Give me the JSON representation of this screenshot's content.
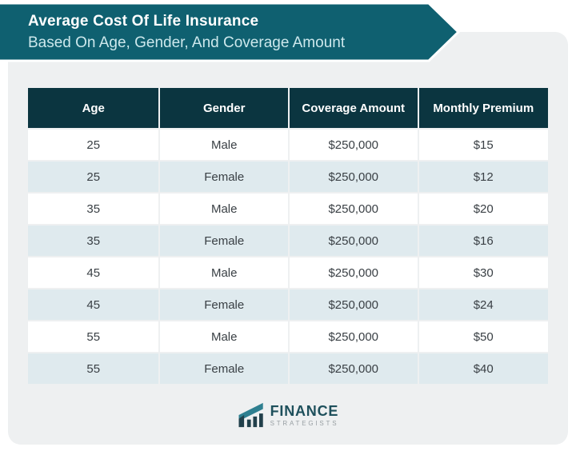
{
  "banner": {
    "title": "Average Cost Of Life Insurance",
    "subtitle": "Based On Age, Gender, And Coverage Amount"
  },
  "table": {
    "columns": [
      "Age",
      "Gender",
      "Coverage Amount",
      "Monthly Premium"
    ],
    "rows": [
      [
        "25",
        "Male",
        "$250,000",
        "$15"
      ],
      [
        "25",
        "Female",
        "$250,000",
        "$12"
      ],
      [
        "35",
        "Male",
        "$250,000",
        "$20"
      ],
      [
        "35",
        "Female",
        "$250,000",
        "$16"
      ],
      [
        "45",
        "Male",
        "$250,000",
        "$30"
      ],
      [
        "45",
        "Female",
        "$250,000",
        "$24"
      ],
      [
        "55",
        "Male",
        "$250,000",
        "$50"
      ],
      [
        "55",
        "Female",
        "$250,000",
        "$40"
      ]
    ]
  },
  "logo": {
    "name": "FINANCE",
    "tagline": "STRATEGISTS"
  },
  "colors": {
    "banner_teal": "#0f6070",
    "header_bg": "#0b3540",
    "row_white": "#ffffff",
    "row_alt": "#dfeaee",
    "card_bg": "#eef0f1",
    "subtitle_text": "#cde8ec",
    "body_text": "#3a4045"
  },
  "chart_data": {
    "type": "table",
    "title": "Average Cost Of Life Insurance Based On Age, Gender, And Coverage Amount",
    "columns": [
      "Age",
      "Gender",
      "Coverage Amount",
      "Monthly Premium"
    ],
    "rows": [
      {
        "age": 25,
        "gender": "Male",
        "coverage_amount": "$250,000",
        "monthly_premium": "$15"
      },
      {
        "age": 25,
        "gender": "Female",
        "coverage_amount": "$250,000",
        "monthly_premium": "$12"
      },
      {
        "age": 35,
        "gender": "Male",
        "coverage_amount": "$250,000",
        "monthly_premium": "$20"
      },
      {
        "age": 35,
        "gender": "Female",
        "coverage_amount": "$250,000",
        "monthly_premium": "$16"
      },
      {
        "age": 45,
        "gender": "Male",
        "coverage_amount": "$250,000",
        "monthly_premium": "$30"
      },
      {
        "age": 45,
        "gender": "Female",
        "coverage_amount": "$250,000",
        "monthly_premium": "$24"
      },
      {
        "age": 55,
        "gender": "Male",
        "coverage_amount": "$250,000",
        "monthly_premium": "$50"
      },
      {
        "age": 55,
        "gender": "Female",
        "coverage_amount": "$250,000",
        "monthly_premium": "$40"
      }
    ]
  }
}
